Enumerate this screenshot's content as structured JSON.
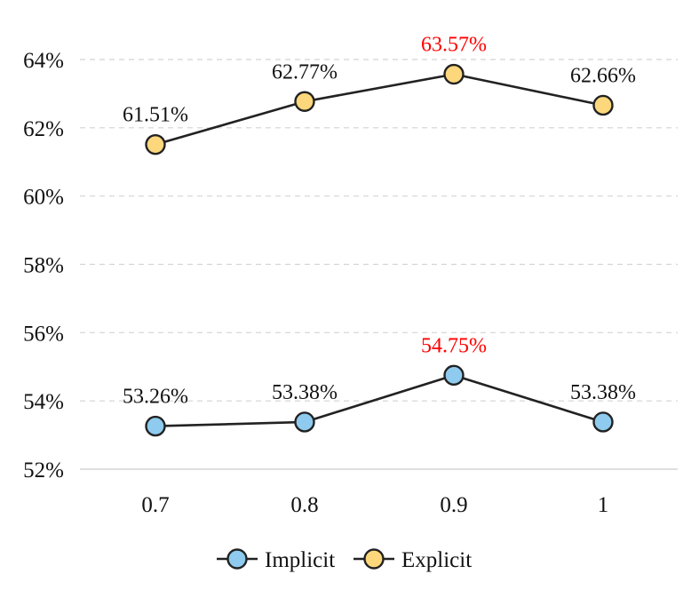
{
  "chart_data": {
    "type": "line",
    "title": "",
    "xlabel": "",
    "ylabel": "",
    "categories": [
      "0.7",
      "0.8",
      "0.9",
      "1"
    ],
    "yticks": [
      "52%",
      "54%",
      "56%",
      "58%",
      "60%",
      "62%",
      "64%"
    ],
    "ylim": [
      52,
      65
    ],
    "grid": "horizontal-dashed",
    "legend_position": "bottom",
    "series": [
      {
        "name": "Implicit",
        "values": [
          53.26,
          53.38,
          54.75,
          53.38
        ],
        "labels": [
          "53.26%",
          "53.38%",
          "54.75%",
          "53.38%"
        ],
        "highlight_index": 2,
        "marker_color": "#8ecbee",
        "line_color": "#222222"
      },
      {
        "name": "Explicit",
        "values": [
          61.51,
          62.77,
          63.57,
          62.66
        ],
        "labels": [
          "61.51%",
          "62.77%",
          "63.57%",
          "62.66%"
        ],
        "highlight_index": 2,
        "marker_color": "#fdd77c",
        "line_color": "#222222"
      }
    ],
    "label_color": "#111111",
    "highlight_color": "#ff0000"
  }
}
